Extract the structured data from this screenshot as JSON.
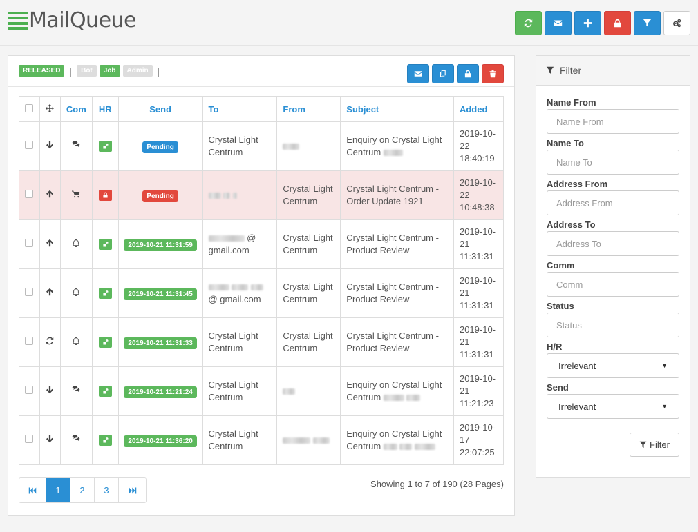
{
  "app": {
    "title": "MailQueue"
  },
  "colors": {
    "green": "#5cb85c",
    "blue": "#2a8fd4",
    "red": "#e2483d",
    "highlight_row": "#f8e5e5"
  },
  "toolbar": {
    "buttons": [
      {
        "icon": "refresh-icon",
        "color": "green"
      },
      {
        "icon": "envelope-icon",
        "color": "blue"
      },
      {
        "icon": "plus-icon",
        "color": "blue"
      },
      {
        "icon": "lock-icon",
        "color": "red"
      },
      {
        "icon": "filter-icon",
        "color": "blue"
      },
      {
        "icon": "cogs-icon",
        "color": "white"
      }
    ]
  },
  "legend": {
    "released": "RELEASED",
    "bot": "Bot",
    "job": "Job",
    "admin": "Admin"
  },
  "panel_actions": [
    {
      "icon": "envelope-icon",
      "color": "blue"
    },
    {
      "icon": "copy-icon",
      "color": "blue"
    },
    {
      "icon": "lock-icon",
      "color": "blue"
    },
    {
      "icon": "trash-icon",
      "color": "red"
    }
  ],
  "table": {
    "headers": {
      "com": "Com",
      "hr": "HR",
      "send": "Send",
      "to": "To",
      "from": "From",
      "subject": "Subject",
      "added": "Added"
    },
    "rows": [
      {
        "direction": "arrow-down-icon",
        "com": "comments-icon",
        "hr": "unlocked",
        "send": "Pending",
        "send_color": "blue",
        "to": "Crystal Light Centrum",
        "from": "",
        "subject": "Enquiry on Crystal Light Centrum",
        "added": "2019-10-22 18:40:19",
        "highlight": false
      },
      {
        "direction": "arrow-up-icon",
        "com": "cart-icon",
        "hr": "locked",
        "send": "Pending",
        "send_color": "red",
        "to": "",
        "from": "Crystal Light Centrum",
        "subject": "Crystal Light Centrum - Order Update 1921",
        "added": "2019-10-22 10:48:38",
        "highlight": true
      },
      {
        "direction": "arrow-up-icon",
        "com": "bell-icon",
        "hr": "unlocked",
        "send": "2019-10-21 11:31:59",
        "send_color": "green",
        "to": "@ gmail.com",
        "from": "Crystal Light Centrum",
        "subject": "Crystal Light Centrum - Product Review",
        "added": "2019-10-21 11:31:31",
        "highlight": false
      },
      {
        "direction": "arrow-up-icon",
        "com": "bell-icon",
        "hr": "unlocked",
        "send": "2019-10-21 11:31:45",
        "send_color": "green",
        "to": "@ gmail.com",
        "from": "Crystal Light Centrum",
        "subject": "Crystal Light Centrum - Product Review",
        "added": "2019-10-21 11:31:31",
        "highlight": false
      },
      {
        "direction": "refresh-icon",
        "com": "bell-icon",
        "hr": "unlocked",
        "send": "2019-10-21 11:31:33",
        "send_color": "green",
        "to": "Crystal Light Centrum",
        "from": "Crystal Light Centrum",
        "subject": "Crystal Light Centrum - Product Review",
        "added": "2019-10-21 11:31:31",
        "highlight": false
      },
      {
        "direction": "arrow-down-icon",
        "com": "comments-icon",
        "hr": "unlocked",
        "send": "2019-10-21 11:21:24",
        "send_color": "green",
        "to": "Crystal Light Centrum",
        "from": "",
        "subject": "Enquiry on Crystal Light Centrum",
        "added": "2019-10-21 11:21:23",
        "highlight": false
      },
      {
        "direction": "arrow-down-icon",
        "com": "comments-icon",
        "hr": "unlocked",
        "send": "2019-10-21 11:36:20",
        "send_color": "green",
        "to": "Crystal Light Centrum",
        "from": "",
        "subject": "Enquiry on Crystal Light Centrum",
        "added": "2019-10-17 22:07:25",
        "highlight": false
      }
    ]
  },
  "pagination": {
    "pages": [
      "1",
      "2",
      "3"
    ],
    "active": "1",
    "summary": "Showing 1 to 7 of 190 (28 Pages)"
  },
  "filter": {
    "title": "Filter",
    "fields": {
      "name_from": {
        "label": "Name From",
        "placeholder": "Name From"
      },
      "name_to": {
        "label": "Name To",
        "placeholder": "Name To"
      },
      "address_from": {
        "label": "Address From",
        "placeholder": "Address From"
      },
      "address_to": {
        "label": "Address To",
        "placeholder": "Address To"
      },
      "comm": {
        "label": "Comm",
        "placeholder": "Comm"
      },
      "status": {
        "label": "Status",
        "placeholder": "Status"
      }
    },
    "hr": {
      "label": "H/R",
      "value": "Irrelevant"
    },
    "send": {
      "label": "Send",
      "value": "Irrelevant"
    },
    "button_label": "Filter"
  }
}
